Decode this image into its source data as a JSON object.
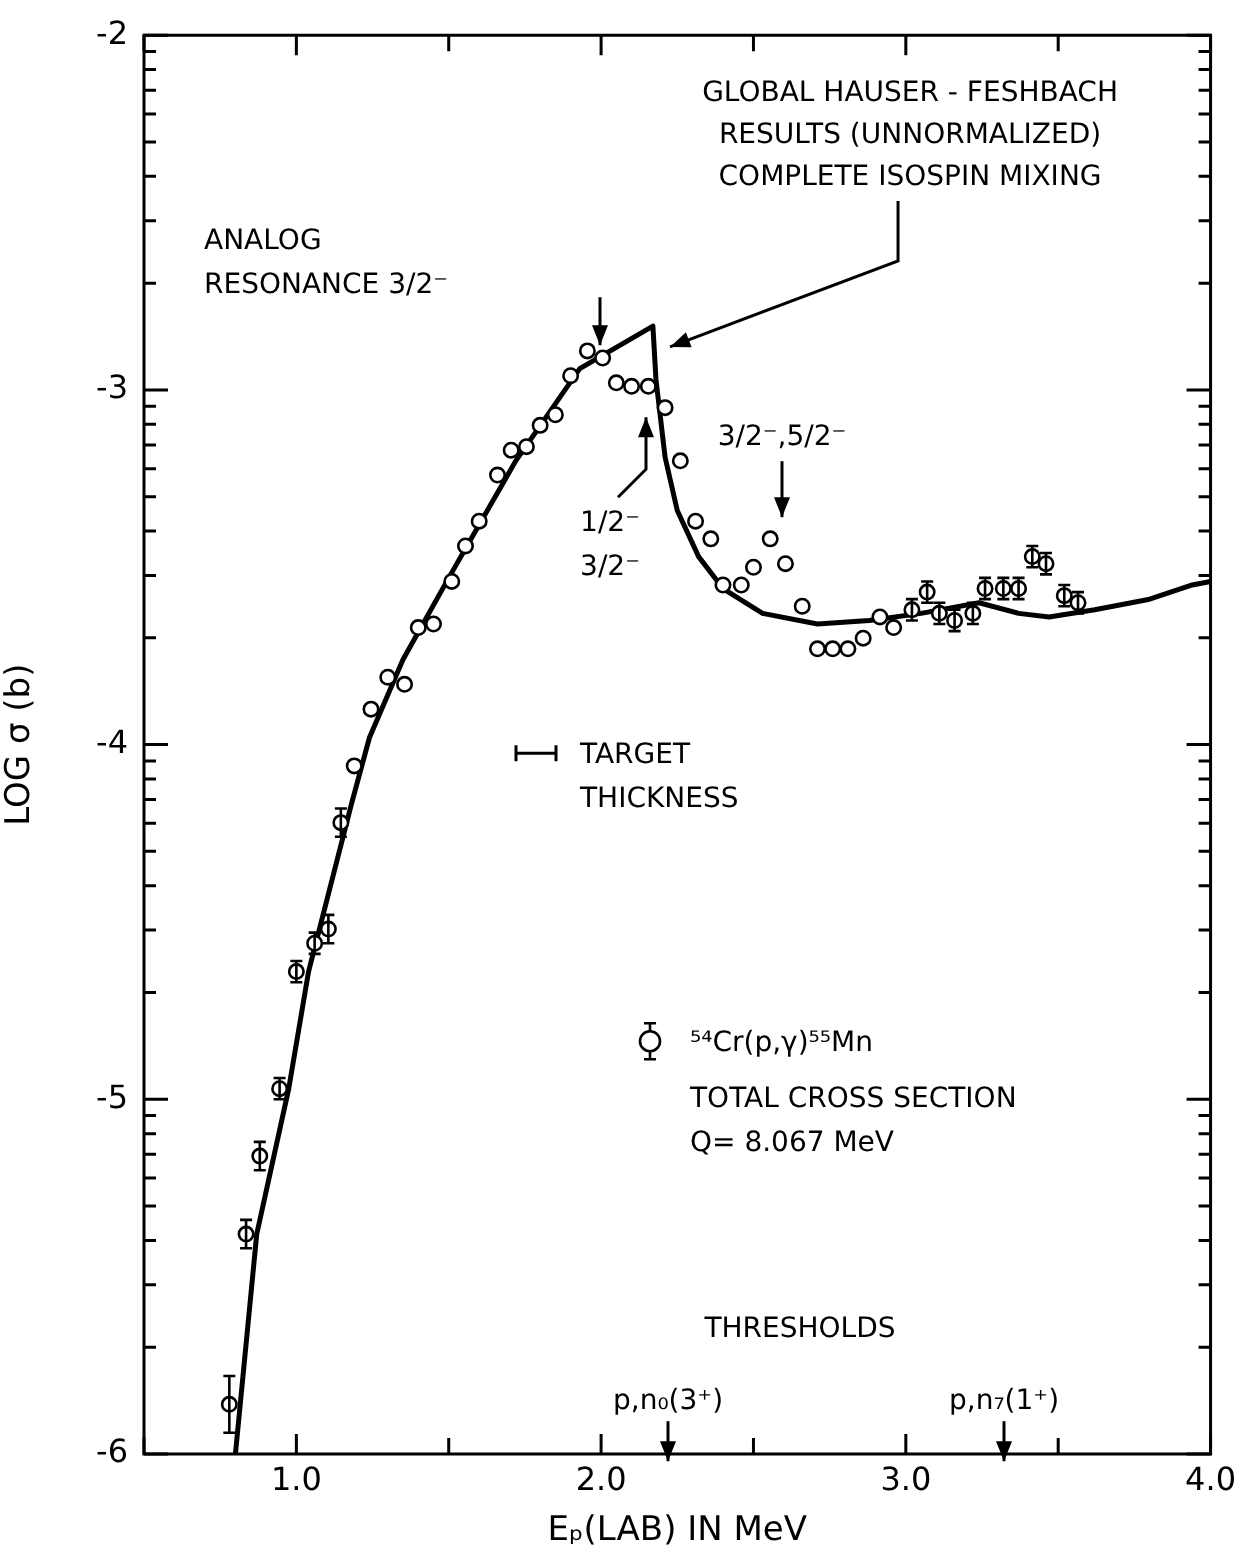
{
  "chart_data": {
    "type": "scatter",
    "xlabel": "Eₚ(LAB) IN MeV",
    "ylabel": "LOG σ (b)",
    "xlim": [
      0.5,
      4.0
    ],
    "ylim": [
      -6,
      -2
    ],
    "xticks": [
      {
        "value": 0.5,
        "label": null
      },
      {
        "value": 1,
        "label": "1.0"
      },
      {
        "value": 1.5,
        "label": null
      },
      {
        "value": 2,
        "label": "2.0"
      },
      {
        "value": 2.5,
        "label": null
      },
      {
        "value": 3,
        "label": "3.0"
      },
      {
        "value": 3.5,
        "label": null
      },
      {
        "value": 4,
        "label": "4.0"
      }
    ],
    "yticks": [
      -6,
      {
        "value": -5.699,
        "label": null
      },
      {
        "value": -5.523,
        "label": null
      },
      {
        "value": -5.398,
        "label": null
      },
      {
        "value": -5.301,
        "label": null
      },
      {
        "value": -5.222,
        "label": null
      },
      {
        "value": -5.155,
        "label": null
      },
      {
        "value": -5.097,
        "label": null
      },
      {
        "value": -5.046,
        "label": null
      },
      -5,
      {
        "value": -4.699,
        "label": null
      },
      {
        "value": -4.523,
        "label": null
      },
      {
        "value": -4.398,
        "label": null
      },
      {
        "value": -4.301,
        "label": null
      },
      {
        "value": -4.222,
        "label": null
      },
      {
        "value": -4.155,
        "label": null
      },
      {
        "value": -4.097,
        "label": null
      },
      {
        "value": -4.046,
        "label": null
      },
      -4,
      {
        "value": -3.699,
        "label": null
      },
      {
        "value": -3.523,
        "label": null
      },
      {
        "value": -3.398,
        "label": null
      },
      {
        "value": -3.301,
        "label": null
      },
      {
        "value": -3.222,
        "label": null
      },
      {
        "value": -3.155,
        "label": null
      },
      {
        "value": -3.097,
        "label": null
      },
      {
        "value": -3.046,
        "label": null
      },
      -3,
      {
        "value": -2.699,
        "label": null
      },
      {
        "value": -2.523,
        "label": null
      },
      {
        "value": -2.398,
        "label": null
      },
      {
        "value": -2.301,
        "label": null
      },
      {
        "value": -2.222,
        "label": null
      },
      {
        "value": -2.155,
        "label": null
      },
      {
        "value": -2.097,
        "label": null
      },
      {
        "value": -2.046,
        "label": null
      },
      -2
    ],
    "legend": "bottom right",
    "series": [
      {
        "name": "⁵⁴Cr(p,γ)⁵⁵Mn",
        "marker": "circle",
        "color": "#000000",
        "x": [
          0.78,
          0.835,
          0.88,
          0.945,
          1.0,
          1.06,
          1.105,
          1.146,
          1.19,
          1.245,
          1.3,
          1.355,
          1.4,
          1.45,
          1.51,
          1.555,
          1.6,
          1.66,
          1.705,
          1.755,
          1.8,
          1.85,
          1.9,
          1.955,
          2.005,
          2.05,
          2.1,
          2.155,
          2.21,
          2.26,
          2.31,
          2.36,
          2.4,
          2.46,
          2.5,
          2.555,
          2.605,
          2.66,
          2.71,
          2.76,
          2.81,
          2.86,
          2.915,
          2.96,
          3.02,
          3.07,
          3.11,
          3.16,
          3.22,
          3.26,
          3.32,
          3.37,
          3.415,
          3.46,
          3.52,
          3.565
        ],
        "values": [
          -5.86,
          -5.38,
          -5.16,
          -4.97,
          -4.64,
          -4.56,
          -4.52,
          -4.22,
          -4.06,
          -3.9,
          -3.81,
          -3.83,
          -3.67,
          -3.66,
          -3.54,
          -3.44,
          -3.37,
          -3.24,
          -3.17,
          -3.16,
          -3.1,
          -3.07,
          -2.96,
          -2.89,
          -2.91,
          -2.98,
          -2.99,
          -2.99,
          -3.05,
          -3.2,
          -3.37,
          -3.42,
          -3.55,
          -3.55,
          -3.5,
          -3.42,
          -3.49,
          -3.61,
          -3.73,
          -3.73,
          -3.73,
          -3.7,
          -3.64,
          -3.67,
          -3.62,
          -3.57,
          -3.63,
          -3.65,
          -3.63,
          -3.56,
          -3.56,
          -3.56,
          -3.47,
          -3.49,
          -3.58,
          -3.6
        ],
        "errors": [
          0.08,
          0.04,
          0.04,
          0.03,
          0.03,
          0.03,
          0.04,
          0.04,
          null,
          null,
          null,
          null,
          null,
          null,
          null,
          null,
          null,
          null,
          null,
          null,
          null,
          null,
          null,
          null,
          null,
          null,
          null,
          null,
          null,
          null,
          null,
          null,
          null,
          null,
          null,
          null,
          null,
          null,
          null,
          null,
          null,
          null,
          null,
          null,
          0.03,
          0.03,
          0.03,
          0.03,
          0.03,
          0.03,
          0.03,
          0.03,
          0.03,
          0.03,
          0.03,
          0.03
        ]
      },
      {
        "type": "line",
        "color": "#000000",
        "x": [
          0.8,
          0.87,
          0.975,
          1.04,
          1.18,
          1.24,
          1.35,
          1.5,
          1.72,
          1.93,
          2.17,
          2.18,
          2.21,
          2.25,
          2.32,
          2.4,
          2.53,
          2.71,
          2.88,
          3.05,
          3.24,
          3.37,
          3.47,
          3.62,
          3.8,
          3.94,
          4.0
        ],
        "values": [
          -6.0,
          -5.38,
          -4.97,
          -4.64,
          -4.17,
          -3.98,
          -3.76,
          -3.53,
          -3.2,
          -2.94,
          -2.82,
          -2.97,
          -3.19,
          -3.34,
          -3.47,
          -3.56,
          -3.63,
          -3.66,
          -3.65,
          -3.63,
          -3.6,
          -3.63,
          -3.64,
          -3.62,
          -3.59,
          -3.55,
          -3.54
        ]
      }
    ],
    "annotations": [
      "ANALOG\nRESONANCE 3/2⁻",
      {
        "text": "GLOBAL HAUSER - FESHBACH\nRESULTS (UNNORMALIZED)\nCOMPLETE ISOSPIN MIXING",
        "x": 2.2,
        "y": -2.89
      },
      "1/2⁻\n3/2⁻",
      "3/2⁻,5/2⁻",
      "TARGET\nTHICKNESS",
      "TOTAL CROSS SECTION\nQ= 8.067 MeV",
      "THRESHOLDS",
      "p,n₀(3⁺)",
      "p,n₇(1⁺)"
    ]
  }
}
